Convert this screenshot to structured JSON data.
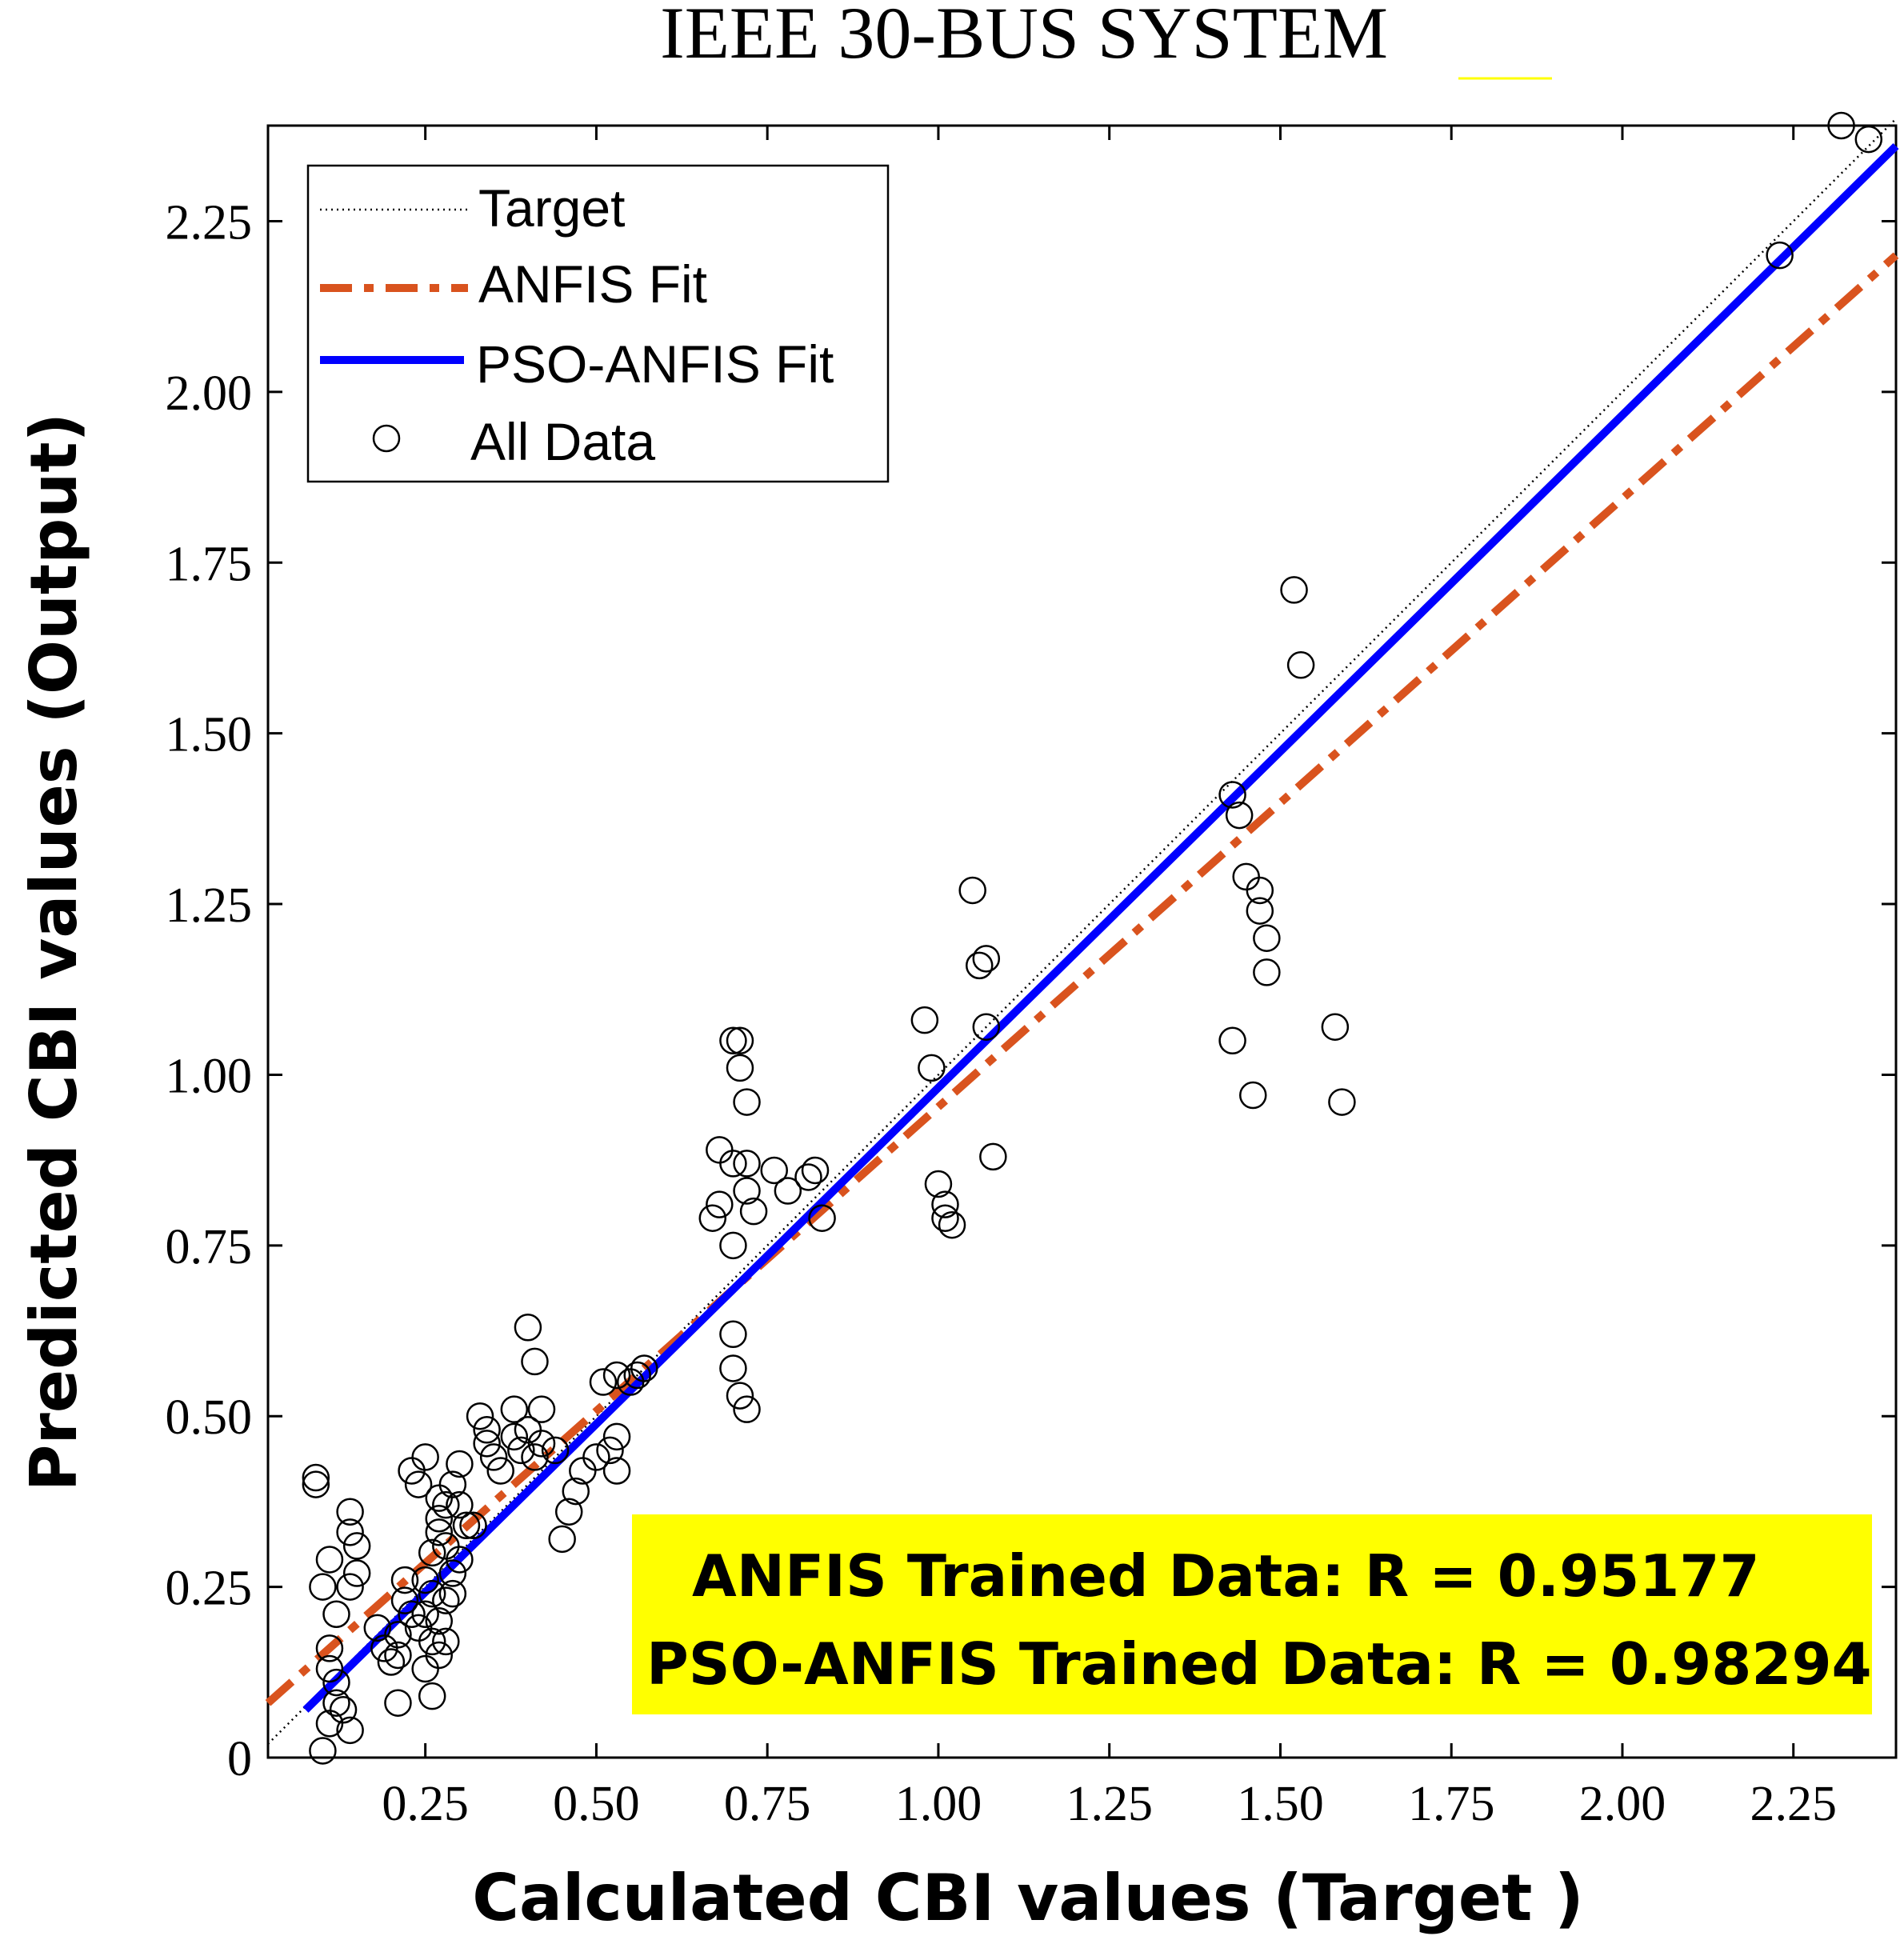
{
  "chart_data": {
    "type": "scatter",
    "title": "IEEE 30-BUS SYSTEM",
    "xlabel": "Calculated CBI values (Target )",
    "ylabel": "Predicted CBI values (Output)",
    "xlim": [
      0.02,
      2.4
    ],
    "ylim": [
      0,
      2.39
    ],
    "x_ticks": [
      0.25,
      0.5,
      0.75,
      1.0,
      1.25,
      1.5,
      1.75,
      2.0,
      2.25
    ],
    "x_tick_labels": [
      "0.25",
      "0.50",
      "0.75",
      "1.00",
      "1.25",
      "1.50",
      "1.75",
      "2.00",
      "2.25"
    ],
    "y_ticks": [
      0,
      0.25,
      0.5,
      0.75,
      1.0,
      1.25,
      1.5,
      1.75,
      2.0,
      2.25
    ],
    "y_tick_labels": [
      "0",
      "0.25",
      "0.50",
      "0.75",
      "1.00",
      "1.25",
      "1.50",
      "1.75",
      "2.00",
      "2.25"
    ],
    "legend": {
      "position": "top-left",
      "entries": [
        "Target",
        "ANFIS Fit",
        "PSO-ANFIS Fit",
        "All Data"
      ]
    },
    "lines": [
      {
        "name": "Target",
        "style": "dotted",
        "color": "#000000",
        "x": [
          0.02,
          2.4
        ],
        "y": [
          0.02,
          2.4
        ]
      },
      {
        "name": "ANFIS Fit",
        "style": "dash-dot",
        "color": "#d9531e",
        "x": [
          0.02,
          2.4
        ],
        "y": [
          0.08,
          2.2
        ]
      },
      {
        "name": "PSO-ANFIS Fit",
        "style": "solid",
        "color": "#0000ff",
        "x": [
          0.075,
          2.4
        ],
        "y": [
          0.07,
          2.36
        ]
      }
    ],
    "annotation": {
      "lines": [
        "ANFIS Trained Data: R = 0.95177",
        "PSO-ANFIS Trained Data: R = 0.98294"
      ],
      "background": "#ffff00"
    },
    "series": [
      {
        "name": "All Data",
        "marker": "open-circle",
        "points": [
          [
            0.09,
            0.41
          ],
          [
            0.09,
            0.4
          ],
          [
            0.11,
            0.29
          ],
          [
            0.1,
            0.25
          ],
          [
            0.11,
            0.16
          ],
          [
            0.11,
            0.13
          ],
          [
            0.12,
            0.11
          ],
          [
            0.12,
            0.08
          ],
          [
            0.13,
            0.07
          ],
          [
            0.11,
            0.05
          ],
          [
            0.1,
            0.01
          ],
          [
            0.14,
            0.04
          ],
          [
            0.14,
            0.25
          ],
          [
            0.12,
            0.21
          ],
          [
            0.14,
            0.36
          ],
          [
            0.14,
            0.33
          ],
          [
            0.15,
            0.31
          ],
          [
            0.15,
            0.27
          ],
          [
            0.18,
            0.19
          ],
          [
            0.19,
            0.16
          ],
          [
            0.21,
            0.18
          ],
          [
            0.2,
            0.14
          ],
          [
            0.21,
            0.15
          ],
          [
            0.22,
            0.23
          ],
          [
            0.23,
            0.42
          ],
          [
            0.24,
            0.4
          ],
          [
            0.25,
            0.44
          ],
          [
            0.26,
            0.3
          ],
          [
            0.27,
            0.35
          ],
          [
            0.27,
            0.33
          ],
          [
            0.25,
            0.26
          ],
          [
            0.26,
            0.24
          ],
          [
            0.25,
            0.21
          ],
          [
            0.24,
            0.19
          ],
          [
            0.26,
            0.17
          ],
          [
            0.25,
            0.13
          ],
          [
            0.26,
            0.09
          ],
          [
            0.21,
            0.08
          ],
          [
            0.23,
            0.21
          ],
          [
            0.22,
            0.26
          ],
          [
            0.27,
            0.38
          ],
          [
            0.29,
            0.4
          ],
          [
            0.28,
            0.37
          ],
          [
            0.28,
            0.31
          ],
          [
            0.29,
            0.27
          ],
          [
            0.28,
            0.23
          ],
          [
            0.27,
            0.2
          ],
          [
            0.28,
            0.17
          ],
          [
            0.27,
            0.15
          ],
          [
            0.29,
            0.24
          ],
          [
            0.3,
            0.43
          ],
          [
            0.3,
            0.37
          ],
          [
            0.31,
            0.34
          ],
          [
            0.3,
            0.29
          ],
          [
            0.32,
            0.34
          ],
          [
            0.33,
            0.5
          ],
          [
            0.34,
            0.48
          ],
          [
            0.34,
            0.46
          ],
          [
            0.35,
            0.44
          ],
          [
            0.36,
            0.42
          ],
          [
            0.38,
            0.51
          ],
          [
            0.38,
            0.47
          ],
          [
            0.4,
            0.48
          ],
          [
            0.39,
            0.45
          ],
          [
            0.41,
            0.44
          ],
          [
            0.4,
            0.63
          ],
          [
            0.41,
            0.58
          ],
          [
            0.42,
            0.51
          ],
          [
            0.42,
            0.46
          ],
          [
            0.44,
            0.45
          ],
          [
            0.45,
            0.32
          ],
          [
            0.46,
            0.36
          ],
          [
            0.47,
            0.39
          ],
          [
            0.48,
            0.42
          ],
          [
            0.5,
            0.44
          ],
          [
            0.52,
            0.45
          ],
          [
            0.53,
            0.47
          ],
          [
            0.53,
            0.42
          ],
          [
            0.51,
            0.55
          ],
          [
            0.53,
            0.56
          ],
          [
            0.55,
            0.55
          ],
          [
            0.56,
            0.56
          ],
          [
            0.57,
            0.57
          ],
          [
            0.67,
            0.79
          ],
          [
            0.68,
            0.81
          ],
          [
            0.68,
            0.89
          ],
          [
            0.7,
            0.87
          ],
          [
            0.72,
            0.87
          ],
          [
            0.7,
            0.75
          ],
          [
            0.72,
            0.83
          ],
          [
            0.73,
            0.8
          ],
          [
            0.76,
            0.86
          ],
          [
            0.78,
            0.83
          ],
          [
            0.81,
            0.85
          ],
          [
            0.82,
            0.86
          ],
          [
            0.83,
            0.79
          ],
          [
            0.7,
            1.05
          ],
          [
            0.71,
            1.05
          ],
          [
            0.71,
            1.01
          ],
          [
            0.72,
            0.96
          ],
          [
            0.7,
            0.62
          ],
          [
            0.7,
            0.57
          ],
          [
            0.71,
            0.53
          ],
          [
            0.72,
            0.51
          ],
          [
            0.98,
            1.08
          ],
          [
            0.99,
            1.01
          ],
          [
            1.0,
            0.84
          ],
          [
            1.01,
            0.81
          ],
          [
            1.01,
            0.79
          ],
          [
            1.02,
            0.78
          ],
          [
            1.05,
            1.27
          ],
          [
            1.06,
            1.16
          ],
          [
            1.07,
            1.17
          ],
          [
            1.07,
            1.07
          ],
          [
            1.08,
            0.88
          ],
          [
            1.43,
            1.41
          ],
          [
            1.44,
            1.38
          ],
          [
            1.45,
            1.29
          ],
          [
            1.47,
            1.27
          ],
          [
            1.47,
            1.24
          ],
          [
            1.48,
            1.2
          ],
          [
            1.48,
            1.15
          ],
          [
            1.43,
            1.05
          ],
          [
            1.46,
            0.97
          ],
          [
            1.52,
            1.71
          ],
          [
            1.53,
            1.6
          ],
          [
            1.58,
            1.07
          ],
          [
            1.59,
            0.96
          ],
          [
            2.23,
            2.2
          ],
          [
            2.32,
            2.39
          ],
          [
            2.36,
            2.37
          ]
        ]
      }
    ]
  }
}
